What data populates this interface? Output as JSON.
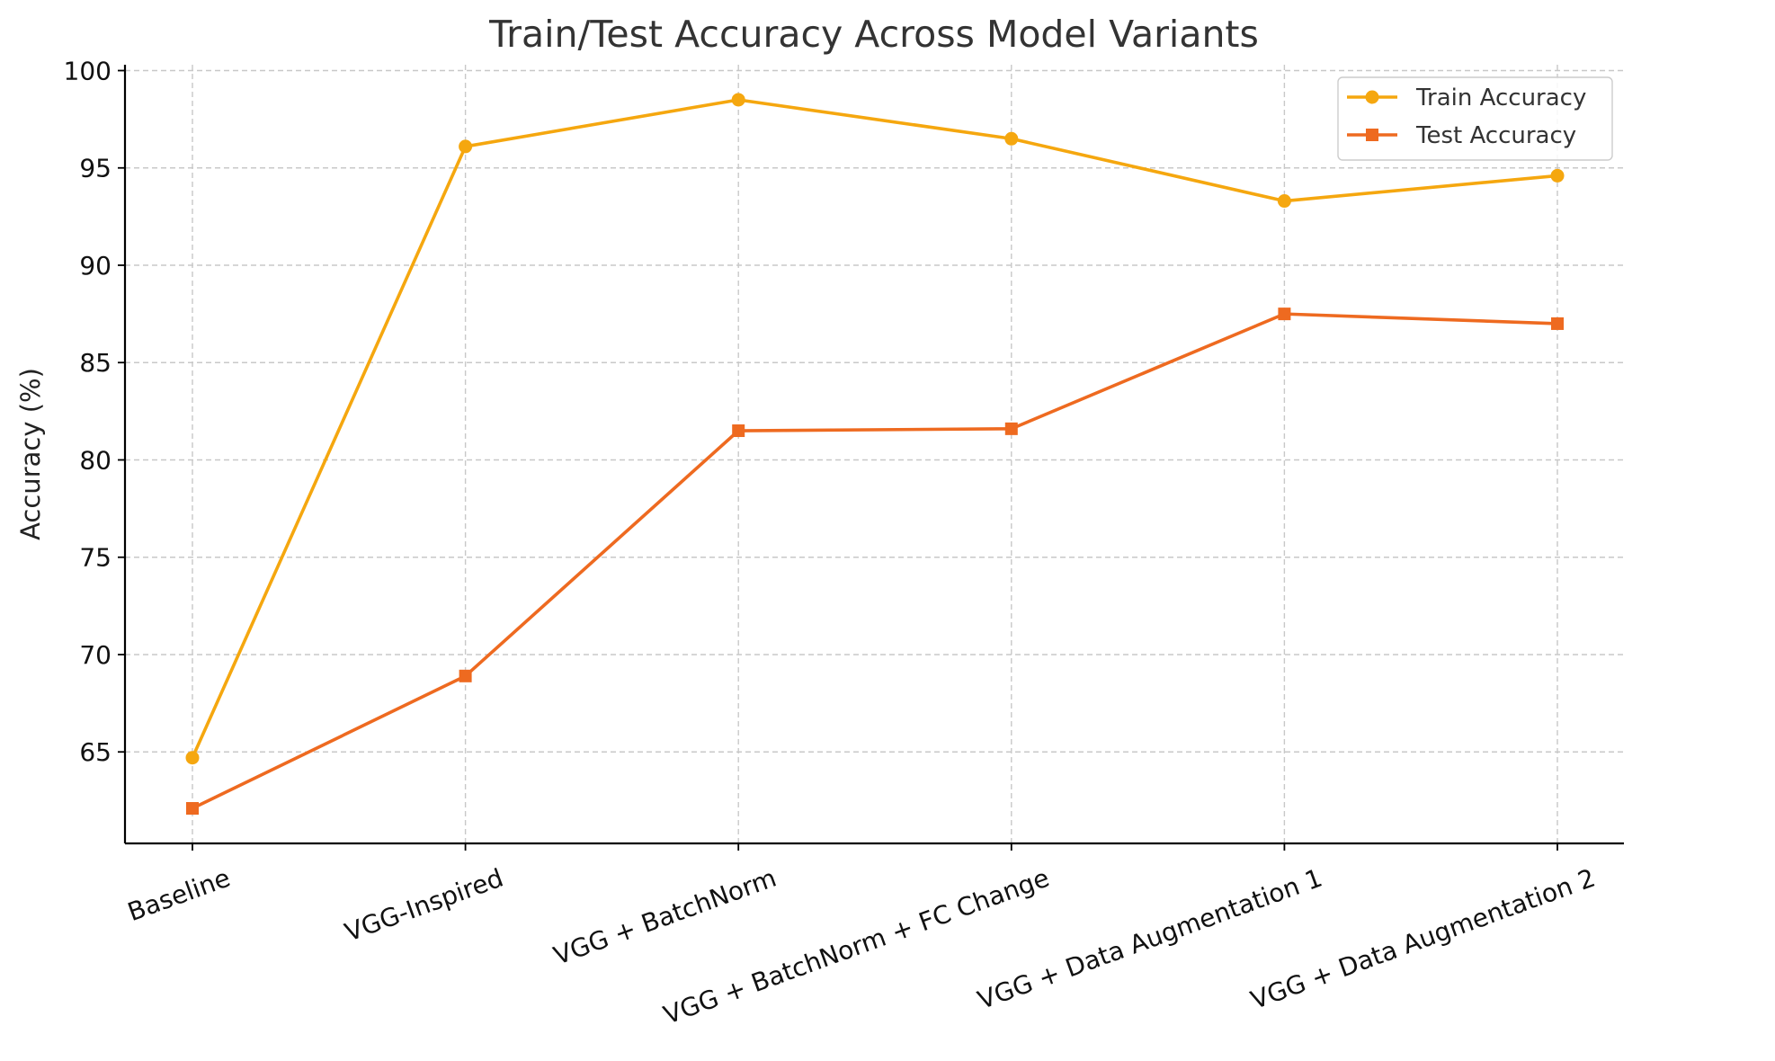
{
  "chart_data": {
    "type": "line",
    "title": "Train/Test Accuracy Across Model Variants",
    "xlabel": "",
    "ylabel": "Accuracy (%)",
    "categories": [
      "Baseline",
      "VGG-Inspired",
      "VGG + BatchNorm",
      "VGG + BatchNorm + FC Change",
      "VGG + Data Augmentation 1",
      "VGG + Data Augmentation 2"
    ],
    "ylim": [
      60.3,
      100.3
    ],
    "yticks": [
      65,
      70,
      75,
      80,
      85,
      90,
      95,
      100
    ],
    "grid": true,
    "legend_position": "top-right",
    "series": [
      {
        "name": "Train Accuracy",
        "values": [
          64.7,
          96.1,
          98.5,
          96.5,
          93.3,
          94.6
        ],
        "color": "#f5a70f",
        "marker": "circle"
      },
      {
        "name": "Test Accuracy",
        "values": [
          62.1,
          68.9,
          81.5,
          81.6,
          87.5,
          87.0
        ],
        "color": "#ee6a20",
        "marker": "square"
      }
    ]
  }
}
